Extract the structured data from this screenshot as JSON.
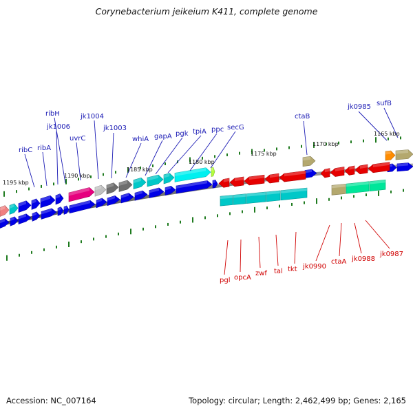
{
  "title": "Corynebacterium jeikeium K411, complete genome",
  "footer": {
    "accession": "Accession: NC_007164",
    "topology": "Topology: circular; Length: 2,462,499 bp; Genes: 2,165"
  },
  "scale_labels": [
    "1195 kbp",
    "1190 kbp",
    "1185 kbp",
    "1180 kbp",
    "1175 kbp",
    "1170 kbp",
    "1165 kbp"
  ],
  "labels_forward": [
    "ribC",
    "ribA",
    "jk1006",
    "ribH",
    "uvrC",
    "jk1004",
    "jk1003",
    "whiA",
    "gapA",
    "pgk",
    "tpiA",
    "ppc",
    "secG",
    "ctaB",
    "jk0985",
    "sufB"
  ],
  "labels_reverse": [
    "pgl",
    "opcA",
    "zwf",
    "tal",
    "tkt",
    "jk0990",
    "ctaA",
    "jk0988",
    "jk0987"
  ],
  "colors": {
    "backbone": "#808080",
    "tick": "#1e7a1e",
    "forward_label": "#1a1ab4",
    "reverse_label": "#d00000",
    "blue": "#0000e6",
    "dark_blue": "#0a1aa0",
    "cyan": "#00c8c8",
    "bright_cyan": "#00f0f0",
    "magenta": "#e6007e",
    "grey": "#6e6e6e",
    "light_grey": "#c0c0c0",
    "red": "#e60000",
    "khaki": "#b4a86e",
    "spring_green": "#00e69a",
    "orange": "#ff8c00",
    "lime": "#b4ff3c",
    "salmon": "#f08080"
  }
}
